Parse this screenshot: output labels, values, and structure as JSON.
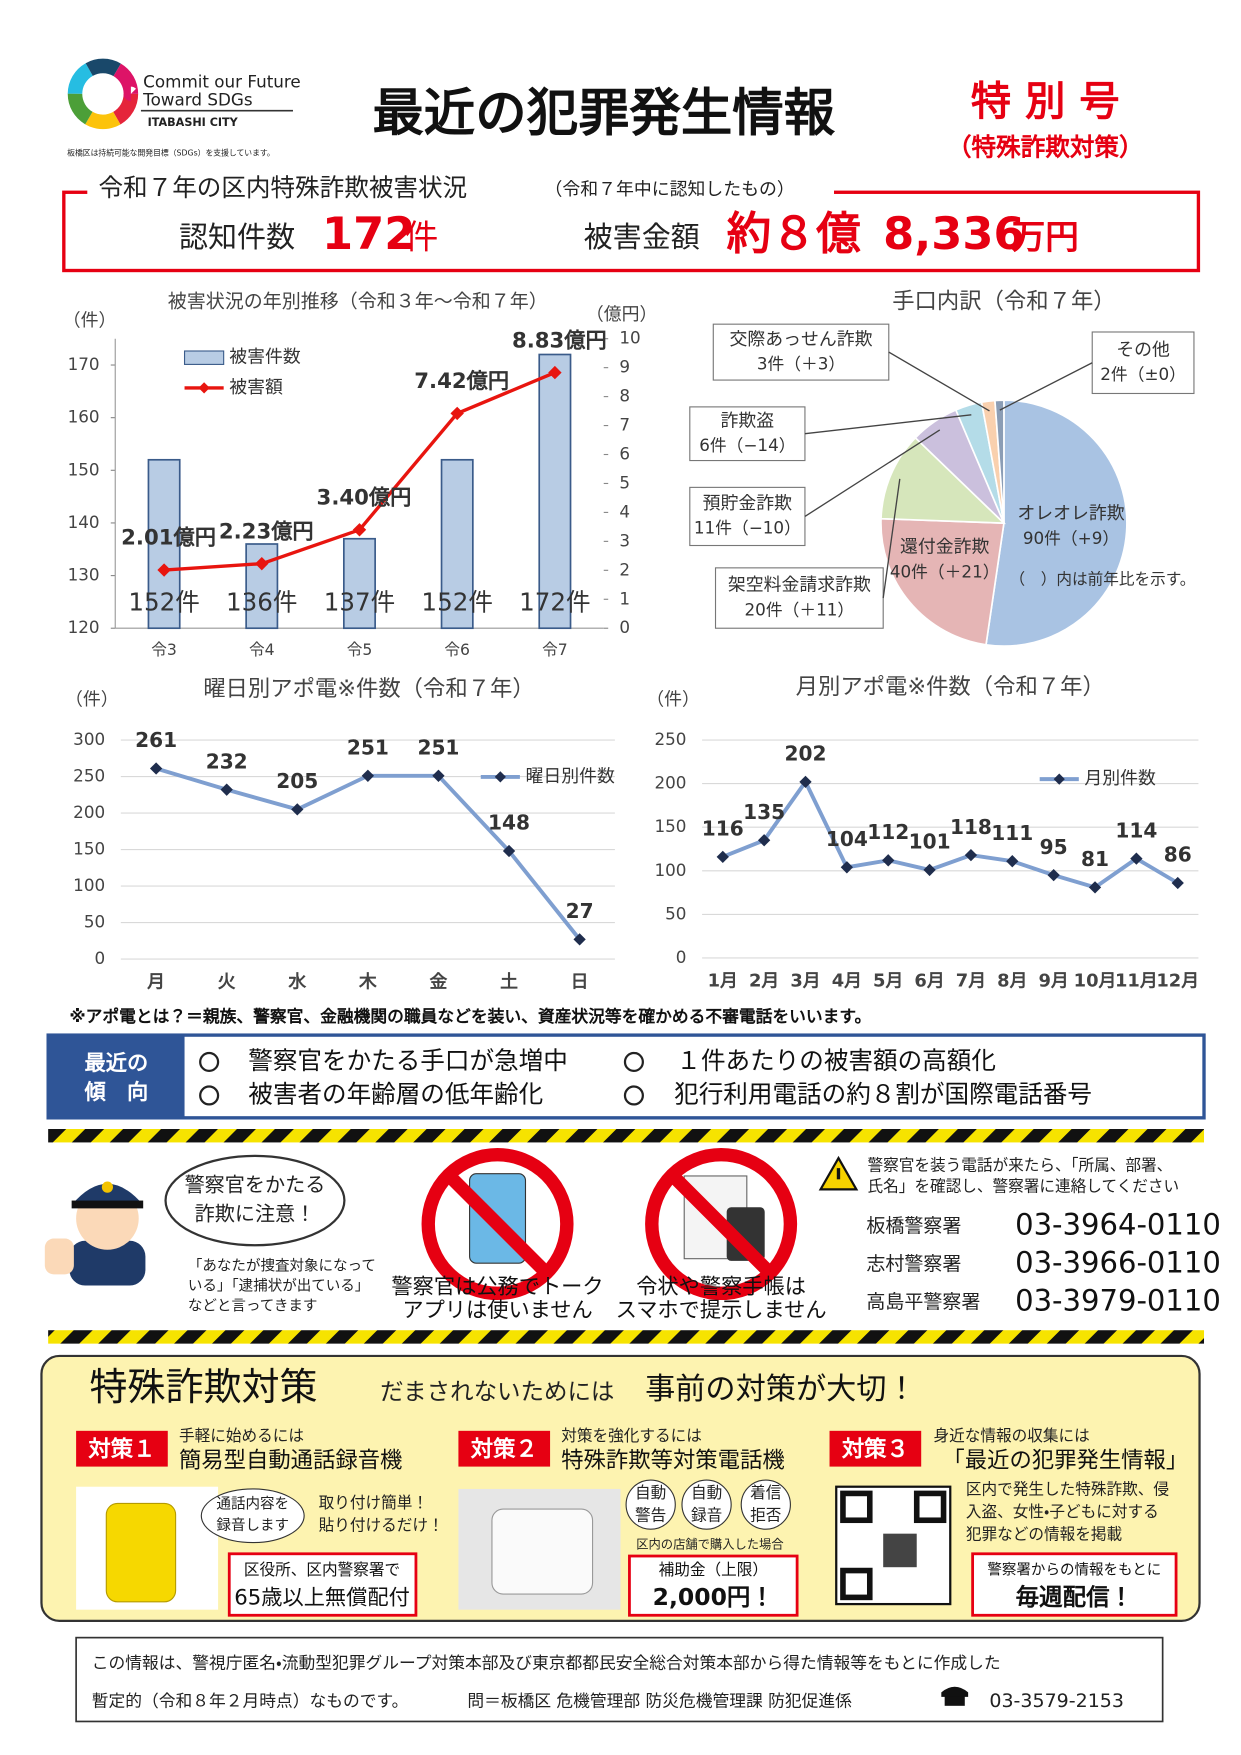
{
  "header": {
    "logo_line1": "Commit our Future",
    "logo_line2": "Toward SDGs",
    "logo_city": "ITABASHI CITY",
    "logo_note": "板橋区は持続可能な開発目標（SDGs）を支援しています。",
    "title": "最近の犯罪発生情報",
    "badge": "特 別 号",
    "badge_sub": "（特殊詐欺対策）"
  },
  "summary": {
    "heading": "令和７年の区内特殊詐欺被害状況",
    "heading_note": "（令和７年中に認知したもの）",
    "count_label": "認知件数",
    "count": "172",
    "count_unit": "件",
    "amount_label": "被害金額",
    "amount_prefix": "約８億",
    "amount": "8,336",
    "amount_unit": "万円"
  },
  "chart_data": [
    {
      "type": "bar",
      "title": "被害状況の年別推移（令和３年～令和７年）",
      "y_label": "（件）",
      "y2_label": "（億円）",
      "categories": [
        "令3",
        "令4",
        "令5",
        "令6",
        "令7"
      ],
      "series": [
        {
          "name": "被害件数",
          "type": "bar",
          "color": "#b8cce4",
          "values": [
            152,
            136,
            137,
            152,
            172
          ],
          "value_labels": [
            "152件",
            "136件",
            "137件",
            "152件",
            "172件"
          ]
        },
        {
          "name": "被害額",
          "type": "line",
          "axis": "y2",
          "color": "#e8150f",
          "values": [
            2.01,
            2.23,
            3.4,
            7.42,
            8.83
          ],
          "value_labels": [
            "2.01億円",
            "2.23億円",
            "3.40億円",
            "7.42億円",
            "8.83億円"
          ]
        }
      ],
      "ylim": [
        120,
        175
      ],
      "yticks": [
        120,
        130,
        140,
        150,
        160,
        170
      ],
      "y2lim": [
        0,
        10
      ],
      "y2ticks": [
        0,
        1,
        2,
        3,
        4,
        5,
        6,
        7,
        8,
        9,
        10
      ],
      "grid": false
    },
    {
      "type": "pie",
      "title": "手口内訳（令和７年）",
      "categories": [
        "オレオレ詐欺",
        "還付金詐欺",
        "架空料金請求詐欺",
        "預貯金詐欺",
        "詐欺盗",
        "交際あっせん詐欺",
        "その他"
      ],
      "values": [
        90,
        40,
        20,
        11,
        6,
        3,
        2
      ],
      "value_labels": [
        "90件",
        "40件",
        "20件",
        "11件",
        "6件",
        "3件",
        "2件"
      ],
      "change_labels": [
        "（+9）",
        "（＋21）",
        "（＋11）",
        "（−10）",
        "（−14）",
        "（＋3）",
        "（±0）"
      ],
      "colors": [
        "#a9c3e3",
        "#e5b5b5",
        "#d6e6bb",
        "#cbc0dd",
        "#b4dce8",
        "#f9d0ae",
        "#8b9db5"
      ],
      "note": "（　）内は前年比を示す。"
    },
    {
      "type": "line",
      "title": "曜日別アポ電※件数（令和７年）",
      "y_label": "（件）",
      "categories": [
        "月",
        "火",
        "水",
        "木",
        "金",
        "土",
        "日"
      ],
      "series": [
        {
          "name": "曜日別件数",
          "color": "#7f9fd0",
          "marker_color": "#1f2d4d",
          "values": [
            261,
            232,
            205,
            251,
            251,
            148,
            27
          ]
        }
      ],
      "ylim": [
        0,
        300
      ],
      "yticks": [
        0,
        50,
        100,
        150,
        200,
        250,
        300
      ],
      "grid": true
    },
    {
      "type": "line",
      "title": "月別アポ電※件数（令和７年）",
      "y_label": "（件）",
      "categories": [
        "1月",
        "2月",
        "3月",
        "4月",
        "5月",
        "6月",
        "7月",
        "8月",
        "9月",
        "10月",
        "11月",
        "12月"
      ],
      "series": [
        {
          "name": "月別件数",
          "color": "#7f9fd0",
          "marker_color": "#1f2d4d",
          "values": [
            116,
            135,
            202,
            104,
            112,
            101,
            118,
            111,
            95,
            81,
            114,
            86
          ]
        }
      ],
      "ylim": [
        0,
        250
      ],
      "yticks": [
        0,
        50,
        100,
        150,
        200,
        250
      ],
      "grid": true
    }
  ],
  "note": "※アポ電とは？＝親族、警察官、金融機関の職員などを装い、資産状況等を確かめる不審電話をいいます。",
  "trends": {
    "label": [
      "最近の",
      "傾　向"
    ],
    "items": [
      "警察官をかたる手口が急増中",
      "被害者の年齢層の低年齢化",
      "１件あたりの被害額の高額化",
      "犯行利用電話の約８割が国際電話番号"
    ]
  },
  "police": {
    "bubble": [
      "警察官をかたる",
      "詐欺に注意！"
    ],
    "quote": [
      "「あなたが捜査対象になって",
      "いる」「逮捕状が出ている」",
      "などと言ってきます"
    ],
    "icon_captions": [
      [
        "警察官は公務でトーク",
        "アプリは使いません"
      ],
      [
        "令状や警察手帳は",
        "スマホで提示しません"
      ]
    ],
    "warning": [
      "警察官を装う電話が来たら、「所属、部署、",
      "氏名」を確認し、警察署に連絡してください"
    ],
    "contacts": [
      {
        "name": "板橋警察署",
        "phone": "03-3964-0110"
      },
      {
        "name": "志村警察署",
        "phone": "03-3966-0110"
      },
      {
        "name": "高島平警察署",
        "phone": "03-3979-0110"
      }
    ]
  },
  "measures": {
    "title": "特殊詐欺対策",
    "subtitle": "だまされないためには",
    "headline": "事前の対策が大切！",
    "items": [
      {
        "tag": "対策１",
        "lead": "手軽に始めるには",
        "name": "簡易型自動通話録音機",
        "bubble": [
          "通話内容を",
          "録音します"
        ],
        "points": [
          "取り付け簡単！",
          "貼り付けるだけ！"
        ],
        "box": [
          "区役所、区内警察署で",
          "65歳以上無償配付"
        ]
      },
      {
        "tag": "対策２",
        "lead": "対策を強化するには",
        "name": "特殊詐欺等対策電話機",
        "features": [
          [
            "自動",
            "警告"
          ],
          [
            "自動",
            "録音"
          ],
          [
            "着信",
            "拒否"
          ]
        ],
        "condition": "区内の店舗で購入した場合",
        "box": [
          "補助金（上限）",
          "2,000円！"
        ]
      },
      {
        "tag": "対策３",
        "lead": "身近な情報の収集には",
        "name": "「最近の犯罪発生情報」",
        "description": [
          "区内で発生した特殊詐欺、侵",
          "入盗、女性・子どもに対する",
          "犯罪などの情報を掲載"
        ],
        "box": [
          "警察署からの情報をもとに",
          "毎週配信！"
        ]
      }
    ]
  },
  "footer": {
    "lines": [
      "この情報は、警視庁匿名・流動型犯罪グループ対策本部及び東京都都民安全総合対策本部から得た情報等をもとに作成した",
      "暫定的（令和８年２月時点）なものです。"
    ],
    "contact": "問＝板橋区 危機管理部 防災危機管理課 防犯促進係",
    "phone": "03-3579-2153"
  }
}
